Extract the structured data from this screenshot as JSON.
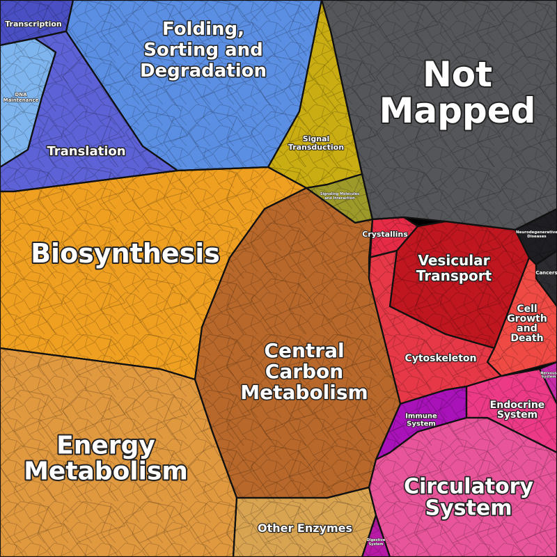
{
  "regions": [
    {
      "id": "transcription",
      "label": [
        "Transcription"
      ],
      "color": "#4a4fc4"
    },
    {
      "id": "folding",
      "label": [
        "Folding,",
        "Sorting and",
        "Degradation"
      ],
      "color": "#5b8fe3"
    },
    {
      "id": "dna-maintenance",
      "label": [
        "DNA",
        "Maintenance"
      ],
      "color": "#7fb5ee"
    },
    {
      "id": "translation",
      "label": [
        "Translation"
      ],
      "color": "#5d62d6"
    },
    {
      "id": "signal-transduction",
      "label": [
        "Signal",
        "Transduction"
      ],
      "color": "#c9ad12"
    },
    {
      "id": "signaling-molecules",
      "label": [
        "Signaling Molecules",
        "and Interaction"
      ],
      "color": "#9d9a2a"
    },
    {
      "id": "not-mapped",
      "label": [
        "Not",
        "Mapped"
      ],
      "color": "#555659"
    },
    {
      "id": "biosynthesis",
      "label": [
        "Biosynthesis"
      ],
      "color": "#f0a021"
    },
    {
      "id": "central-carbon",
      "label": [
        "Central",
        "Carbon",
        "Metabolism"
      ],
      "color": "#b8682a"
    },
    {
      "id": "energy-metabolism",
      "label": [
        "Energy",
        "Metabolism"
      ],
      "color": "#e1993f"
    },
    {
      "id": "other-enzymes",
      "label": [
        "Other Enzymes"
      ],
      "color": "#d9a452"
    },
    {
      "id": "crystallins",
      "label": [
        "Crystallins"
      ],
      "color": "#e52b46"
    },
    {
      "id": "vesicular-transport",
      "label": [
        "Vesicular",
        "Transport"
      ],
      "color": "#c0161f"
    },
    {
      "id": "neurodegenerative",
      "label": [
        "Neurodegenerative",
        "Diseases"
      ],
      "color": "#1e1e22"
    },
    {
      "id": "cancers",
      "label": [
        "Cancers"
      ],
      "color": "#2c2c30"
    },
    {
      "id": "cell-growth",
      "label": [
        "Cell",
        "Growth",
        "and",
        "Death"
      ],
      "color": "#f04a44"
    },
    {
      "id": "cytoskeleton",
      "label": [
        "Cytoskeleton"
      ],
      "color": "#e63846"
    },
    {
      "id": "immune-system",
      "label": [
        "Immune",
        "System"
      ],
      "color": "#a812b8"
    },
    {
      "id": "endocrine-system",
      "label": [
        "Endocrine",
        "System"
      ],
      "color": "#ec3a86"
    },
    {
      "id": "nervous-system",
      "label": [
        "Nervous",
        "System"
      ],
      "color": "#c62aa6"
    },
    {
      "id": "circulatory-system",
      "label": [
        "Circulatory",
        "System"
      ],
      "color": "#e8559a"
    },
    {
      "id": "digestive-system",
      "label": [
        "Digestive",
        "System"
      ],
      "color": "#b81aa5"
    }
  ]
}
